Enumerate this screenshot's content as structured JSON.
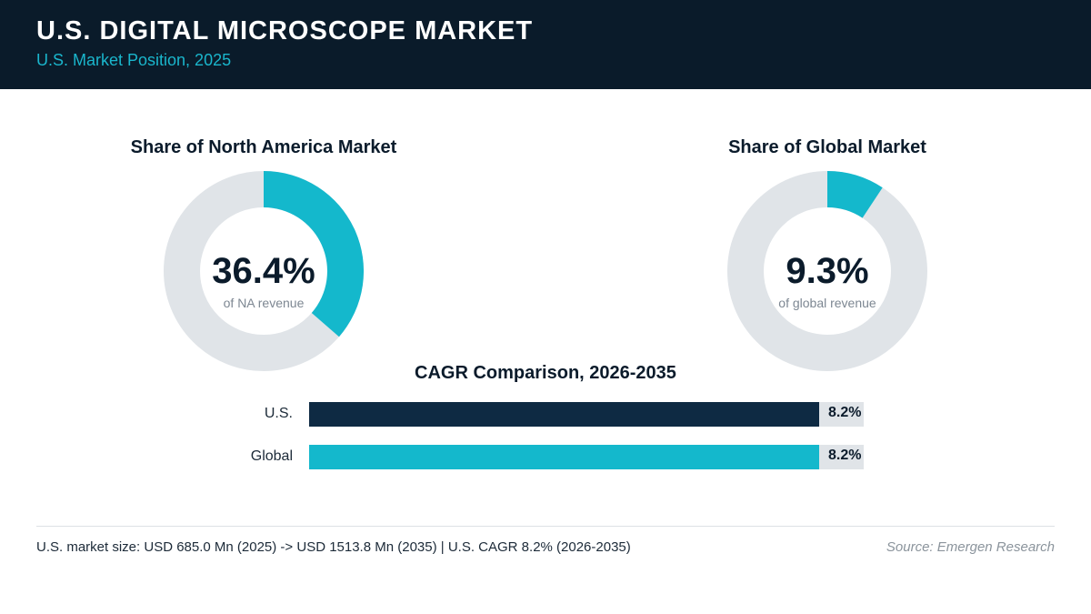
{
  "header": {
    "title": "U.S. DIGITAL MICROSCOPE MARKET",
    "subtitle": "U.S. Market Position, 2025"
  },
  "colors": {
    "accent": "#14b8cc",
    "navy": "#0e2a43",
    "track": "#e0e4e8"
  },
  "chart_data": [
    {
      "type": "pie",
      "title": "Share of North America Market",
      "value": 36.4,
      "value_label": "36.4%",
      "caption": "of NA revenue"
    },
    {
      "type": "pie",
      "title": "Share of Global Market",
      "value": 9.3,
      "value_label": "9.3%",
      "caption": "of global revenue"
    },
    {
      "type": "bar",
      "title": "CAGR Comparison, 2026-2035",
      "categories": [
        "U.S.",
        "Global"
      ],
      "values": [
        8.2,
        8.2
      ],
      "value_labels": [
        "8.2%",
        "8.2%"
      ],
      "colors": [
        "#0e2a43",
        "#14b8cc"
      ]
    }
  ],
  "footer": {
    "note": "U.S. market size: USD 685.0 Mn (2025) -> USD 1513.8 Mn (2035)  |  U.S. CAGR 8.2% (2026-2035)",
    "source": "Source: Emergen Research"
  }
}
